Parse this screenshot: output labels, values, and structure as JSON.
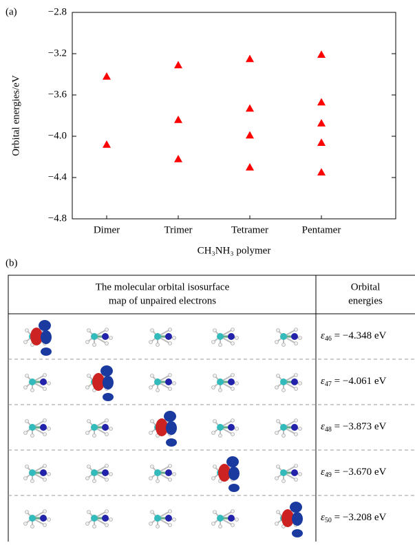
{
  "panel_labels": [
    "(a)",
    "(b)"
  ],
  "chart_data": {
    "type": "scatter",
    "y_label": "Orbital energies/eV",
    "x_label": "CH₃NH₃ polymer",
    "categories": [
      "Dimer",
      "Trimer",
      "Tetramer",
      "Pentamer"
    ],
    "values": [
      [
        -3.42,
        -4.08
      ],
      [
        -3.31,
        -3.84,
        -4.22
      ],
      [
        -3.25,
        -3.73,
        -3.99,
        -4.3
      ],
      [
        -3.208,
        -3.67,
        -3.873,
        -4.061,
        -4.348
      ]
    ],
    "color": "#ff0000",
    "marker": "triangle",
    "ylim": [
      -4.8,
      -2.8
    ],
    "yticks": [
      {
        "value": -4.8,
        "label": "−4.8"
      },
      {
        "value": -4.4,
        "label": "−4.4"
      },
      {
        "value": -4.0,
        "label": "−4.0"
      },
      {
        "value": -3.6,
        "label": "−3.6"
      },
      {
        "value": -3.2,
        "label": "−3.2"
      },
      {
        "value": -2.8,
        "label": "−2.8"
      }
    ]
  },
  "table": {
    "header": [
      "The molecular orbital isosurface",
      "map of unpaired electrons",
      "Orbital",
      "energies"
    ],
    "rows": [
      {
        "symbol": "ε",
        "index": "46",
        "energy": " = −4.348 eV"
      },
      {
        "symbol": "ε",
        "index": "47",
        "energy": " = −4.061 eV"
      },
      {
        "symbol": "ε",
        "index": "48",
        "energy": " = −3.873 eV"
      },
      {
        "symbol": "ε",
        "index": "49",
        "energy": " = −3.670 eV"
      },
      {
        "symbol": "ε",
        "index": "50",
        "energy": " = −3.208 eV"
      }
    ]
  }
}
